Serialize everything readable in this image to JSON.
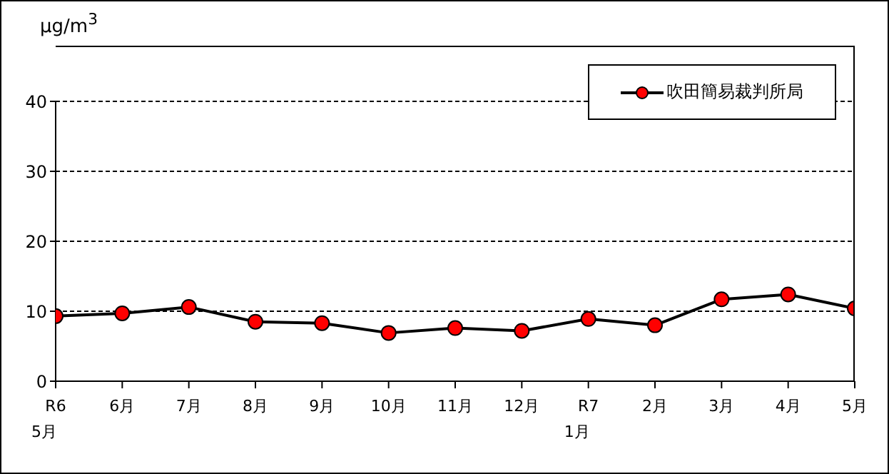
{
  "chart_data": {
    "type": "line",
    "ylabel": "μg/m$^{3}$",
    "categories": [
      "R6\n5月",
      "6月",
      "7月",
      "8月",
      "9月",
      "10月",
      "11月",
      "12月",
      "R7\n1月",
      "2月",
      "3月",
      "4月",
      "5月"
    ],
    "series": [
      {
        "name": "吹田簡易裁判所局",
        "color": "#ff0000",
        "values": [
          9.3,
          9.7,
          10.6,
          8.5,
          8.3,
          6.9,
          7.6,
          7.2,
          8.9,
          8.0,
          11.7,
          12.4,
          10.4
        ]
      }
    ],
    "ylim": [
      0,
      40
    ],
    "yticks": [
      0,
      10,
      20,
      30,
      40
    ],
    "grid": "y",
    "legend": "top right",
    "marker": "circle",
    "line_style": "solid"
  }
}
